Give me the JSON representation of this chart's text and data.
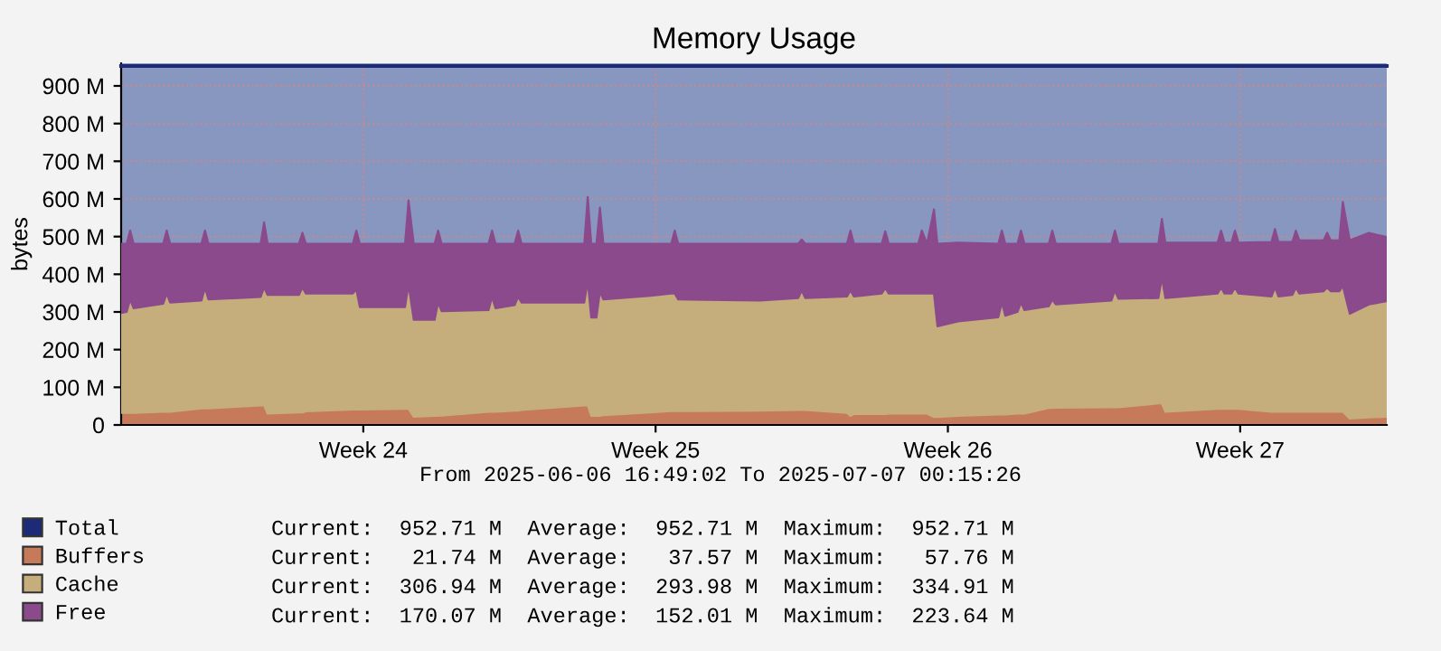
{
  "chart_data": {
    "type": "area",
    "stacked": true,
    "title": "Memory Usage",
    "ylabel": "bytes",
    "x": [
      "2025-06-06T16:49",
      "2025-06-06T20:00",
      "2025-06-06T22:00",
      "2025-06-07T00:00",
      "2025-06-07T17:00",
      "2025-06-07T19:00",
      "2025-06-07T21:00",
      "2025-06-08T15:00",
      "2025-06-08T17:00",
      "2025-06-08T19:00",
      "2025-06-10T01:00",
      "2025-06-10T03:00",
      "2025-06-10T05:00",
      "2025-06-10T23:00",
      "2025-06-11T01:00",
      "2025-06-11T03:00",
      "2025-06-12T06:00",
      "2025-06-12T08:00",
      "2025-06-12T10:00",
      "2025-06-13T12:00",
      "2025-06-13T14:00",
      "2025-06-13T17:00",
      "2025-06-14T05:00",
      "2025-06-14T07:00",
      "2025-06-14T09:00",
      "2025-06-15T12:00",
      "2025-06-15T14:00",
      "2025-06-15T16:00",
      "2025-06-16T03:00",
      "2025-06-16T05:00",
      "2025-06-16T07:00",
      "2025-06-17T19:00",
      "2025-06-17T21:00",
      "2025-06-17T23:00",
      "2025-06-18T02:00",
      "2025-06-18T04:00",
      "2025-06-18T06:00",
      "2025-06-19T09:00",
      "2025-06-19T21:00",
      "2025-06-19T23:00",
      "2025-06-20T01:00",
      "2025-06-22T00:00",
      "2025-06-22T22:00",
      "2025-06-23T00:00",
      "2025-06-23T02:00",
      "2025-06-24T02:00",
      "2025-06-24T04:00",
      "2025-06-24T06:00",
      "2025-06-24T22:00",
      "2025-06-25T00:00",
      "2025-06-25T02:00",
      "2025-06-25T19:00",
      "2025-06-25T21:00",
      "2025-06-26T00:00",
      "2025-06-26T04:00",
      "2025-06-26T06:00",
      "2025-06-26T18:00",
      "2025-06-27T17:00",
      "2025-06-27T19:00",
      "2025-06-27T21:00",
      "2025-06-28T04:00",
      "2025-06-28T06:00",
      "2025-06-28T08:00",
      "2025-06-28T22:00",
      "2025-06-29T00:00",
      "2025-06-29T02:00",
      "2025-06-30T10:00",
      "2025-06-30T12:00",
      "2025-06-30T14:00",
      "2025-07-01T13:00",
      "2025-07-01T15:00",
      "2025-07-01T17:00",
      "2025-07-02T23:00",
      "2025-07-03T01:00",
      "2025-07-03T03:00",
      "2025-07-03T07:00",
      "2025-07-03T09:00",
      "2025-07-03T11:00",
      "2025-07-04T06:00",
      "2025-07-04T08:00",
      "2025-07-04T10:00",
      "2025-07-04T18:00",
      "2025-07-04T20:00",
      "2025-07-04T22:00",
      "2025-07-05T12:00",
      "2025-07-05T14:00",
      "2025-07-05T16:00",
      "2025-07-05T21:00",
      "2025-07-05T23:00",
      "2025-07-06T03:00",
      "2025-07-06T14:00",
      "2025-07-07T00:15"
    ],
    "series": [
      {
        "name": "Total",
        "type": "line",
        "color": "#1c2a78",
        "values": [
          952.71,
          952.71,
          952.71,
          952.71,
          952.71,
          952.71,
          952.71,
          952.71,
          952.71,
          952.71,
          952.71,
          952.71,
          952.71,
          952.71,
          952.71,
          952.71,
          952.71,
          952.71,
          952.71,
          952.71,
          952.71,
          952.71,
          952.71,
          952.71,
          952.71,
          952.71,
          952.71,
          952.71,
          952.71,
          952.71,
          952.71,
          952.71,
          952.71,
          952.71,
          952.71,
          952.71,
          952.71,
          952.71,
          952.71,
          952.71,
          952.71,
          952.71,
          952.71,
          952.71,
          952.71,
          952.71,
          952.71,
          952.71,
          952.71,
          952.71,
          952.71,
          952.71,
          952.71,
          952.71,
          952.71,
          952.71,
          952.71,
          952.71,
          952.71,
          952.71,
          952.71,
          952.71,
          952.71,
          952.71,
          952.71,
          952.71,
          952.71,
          952.71,
          952.71,
          952.71,
          952.71,
          952.71,
          952.71,
          952.71,
          952.71,
          952.71,
          952.71,
          952.71,
          952.71,
          952.71,
          952.71,
          952.71,
          952.71,
          952.71,
          952.71,
          952.71,
          952.71,
          952.71,
          952.71,
          952.71,
          952.71,
          952.71
        ]
      },
      {
        "name": "Buffers",
        "color": "#c77a5a",
        "values": [
          32,
          32,
          32,
          32,
          35,
          35,
          35,
          44,
          44,
          44,
          52,
          52,
          30,
          33,
          33,
          36,
          41,
          41,
          41,
          43,
          43,
          22,
          24,
          24,
          25,
          35,
          35,
          35,
          38,
          38,
          40,
          52,
          52,
          24,
          24,
          24,
          26,
          33,
          37,
          37,
          37,
          38,
          40,
          40,
          40,
          32,
          24,
          29,
          29,
          29,
          30,
          30,
          30,
          30,
          21,
          21,
          24,
          28,
          28,
          28,
          30,
          30,
          30,
          45,
          45,
          46,
          47,
          47,
          47,
          57,
          57,
          35,
          43,
          43,
          43,
          43,
          43,
          43,
          35,
          35,
          35,
          35,
          35,
          35,
          35,
          35,
          35,
          35,
          35,
          17,
          20,
          21.74
        ]
      },
      {
        "name": "Cache",
        "color": "#c5ae7b",
        "values": [
          265,
          268,
          301,
          278,
          287,
          314,
          290,
          286,
          321,
          289,
          288,
          313,
          315,
          312,
          332,
          313,
          308,
          319,
          272,
          270,
          330,
          257,
          255,
          301,
          277,
          270,
          305,
          275,
          280,
          302,
          285,
          273,
          330,
          261,
          261,
          330,
          307,
          310,
          312,
          312,
          296,
          292,
          297,
          317,
          297,
          309,
          333,
          312,
          320,
          334,
          319,
          319,
          319,
          319,
          328,
          241,
          251,
          258,
          297,
          262,
          270,
          295,
          275,
          270,
          288,
          274,
          283,
          310,
          288,
          280,
          334,
          302,
          306,
          322,
          306,
          306,
          322,
          306,
          306,
          330,
          306,
          310,
          330,
          314,
          320,
          330,
          320,
          320,
          334,
          278,
          300,
          306.94
        ]
      },
      {
        "name": "Free",
        "color": "#8a4a8c",
        "values": [
          184,
          181,
          183,
          171,
          159,
          167,
          156,
          151,
          151,
          148,
          141,
          173,
          136,
          136,
          145,
          132,
          132,
          156,
          168,
          168,
          223,
          202,
          202,
          191,
          179,
          176,
          176,
          171,
          163,
          176,
          156,
          156,
          223,
          196,
          196,
          223,
          148,
          138,
          132,
          167,
          148,
          151,
          144,
          135,
          144,
          140,
          159,
          140,
          132,
          151,
          132,
          132,
          167,
          132,
          223,
          219,
          209,
          195,
          191,
          191,
          181,
          191,
          176,
          166,
          183,
          161,
          151,
          159,
          146,
          144,
          156,
          147,
          135,
          151,
          135,
          135,
          151,
          135,
          145,
          155,
          145,
          141,
          151,
          141,
          135,
          145,
          135,
          135,
          223,
          195,
          190,
          170.07
        ]
      }
    ],
    "xlim": [
      "2025-06-06T16:49",
      "2025-07-07T00:15"
    ],
    "xticks": [
      {
        "value": "2025-06-12T12:00",
        "label": "Week 24"
      },
      {
        "value": "2025-06-19T12:00",
        "label": "Week 25"
      },
      {
        "value": "2025-06-26T12:00",
        "label": "Week 26"
      },
      {
        "value": "2025-07-03T12:00",
        "label": "Week 27"
      }
    ],
    "ylim": [
      0,
      960
    ],
    "yticks": [
      0,
      {
        "value": 100,
        "label": "100 M"
      },
      {
        "value": 200,
        "label": "200 M"
      },
      {
        "value": 300,
        "label": "300 M"
      },
      {
        "value": 400,
        "label": "400 M"
      },
      {
        "value": 500,
        "label": "500 M"
      },
      {
        "value": 600,
        "label": "600 M"
      },
      {
        "value": 700,
        "label": "700 M"
      },
      {
        "value": 800,
        "label": "800 M"
      },
      {
        "value": 900,
        "label": "900 M"
      }
    ],
    "grid": true,
    "legend": "bottom",
    "annotations": [
      "From 2025-06-06 16:49:02 To 2025-07-07 00:15:26",
      "Current:  952.71 M  Average:  952.71 M  Maximum:  952.71 M",
      "Current:   21.74 M  Average:   37.57 M  Maximum:   57.76 M",
      "Current:  306.94 M  Average:  293.98 M  Maximum:  334.91 M",
      "Current:  170.07 M  Average:  152.01 M  Maximum:  223.64 M"
    ]
  }
}
